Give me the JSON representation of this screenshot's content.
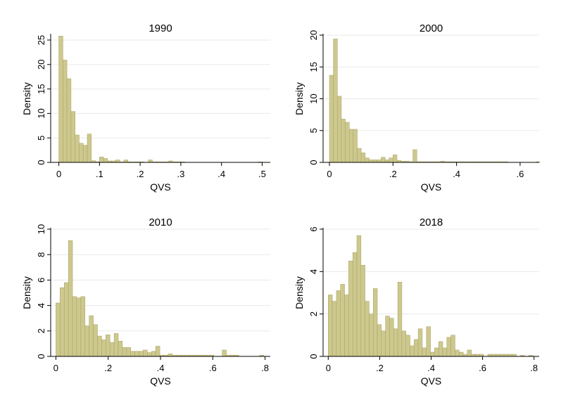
{
  "chart_data": [
    {
      "type": "bar",
      "title": "1990",
      "xlabel": "QVS",
      "ylabel": "Density",
      "xlim": [
        -0.02,
        0.52
      ],
      "ylim": [
        0,
        26
      ],
      "x_ticks": [
        0,
        0.1,
        0.2,
        0.3,
        0.4,
        0.5
      ],
      "x_tick_labels": [
        "0",
        ".1",
        ".2",
        ".3",
        ".4",
        ".5"
      ],
      "y_ticks": [
        0,
        5,
        10,
        15,
        20,
        25
      ],
      "y_tick_labels": [
        "0",
        "5",
        "10",
        "15",
        "20",
        "25"
      ],
      "grid": true,
      "bin_start": 0,
      "bin_width": 0.01,
      "values": [
        25.8,
        20.9,
        17.1,
        10.4,
        5.6,
        3.9,
        3.5,
        5.8,
        0.35,
        0.15,
        1.1,
        0.8,
        0.3,
        0.3,
        0.5,
        0.1,
        0.5,
        0.1,
        0.1,
        0.1,
        0.1,
        0,
        0.5,
        0.1,
        0.1,
        0.1,
        0.1,
        0.3,
        0.1,
        0.1,
        0.1,
        0,
        0,
        0,
        0,
        0,
        0,
        0,
        0,
        0,
        0,
        0,
        0,
        0,
        0,
        0,
        0,
        0,
        0,
        0.1
      ]
    },
    {
      "type": "bar",
      "title": "2000",
      "xlabel": "QVS",
      "ylabel": "Density",
      "xlim": [
        -0.02,
        0.66
      ],
      "ylim": [
        0,
        20
      ],
      "x_ticks": [
        0,
        0.2,
        0.4,
        0.6
      ],
      "x_tick_labels": [
        "0",
        ".2",
        ".4",
        ".6"
      ],
      "y_ticks": [
        0,
        5,
        10,
        15,
        20
      ],
      "y_tick_labels": [
        "0",
        "5",
        "10",
        "15",
        "20"
      ],
      "grid": true,
      "bin_start": 0,
      "bin_width": 0.0125,
      "values": [
        13.7,
        19.4,
        10.4,
        6.8,
        6.3,
        5.2,
        5.2,
        2.2,
        1.5,
        0.7,
        0.4,
        0.4,
        0.4,
        0.8,
        0.4,
        0.7,
        1.2,
        0.3,
        0.2,
        0.2,
        0.1,
        2.0,
        0.1,
        0.1,
        0.1,
        0.1,
        0.1,
        0.1,
        0.2,
        0.1,
        0.1,
        0.1,
        0.1,
        0.1,
        0.1,
        0.1,
        0.1,
        0.1,
        0.1,
        0.1,
        0.1,
        0.1,
        0.1,
        0.1,
        0.1,
        0,
        0,
        0,
        0,
        0,
        0,
        0,
        0.1
      ]
    },
    {
      "type": "bar",
      "title": "2010",
      "xlabel": "QVS",
      "ylabel": "Density",
      "xlim": [
        -0.02,
        0.82
      ],
      "ylim": [
        0,
        10
      ],
      "x_ticks": [
        0,
        0.2,
        0.4,
        0.6,
        0.8
      ],
      "x_tick_labels": [
        "0",
        ".2",
        ".4",
        ".6",
        ".8"
      ],
      "y_ticks": [
        0,
        2,
        4,
        6,
        8,
        10
      ],
      "y_tick_labels": [
        "0",
        "2",
        "4",
        "6",
        "8",
        "10"
      ],
      "grid": true,
      "bin_start": 0,
      "bin_width": 0.0159,
      "values": [
        4.2,
        5.4,
        5.8,
        9.1,
        4.7,
        4.6,
        4.7,
        2.4,
        3.2,
        2.5,
        1.6,
        1.3,
        1.7,
        1.1,
        1.8,
        1.2,
        0.7,
        0.7,
        0.4,
        0.4,
        0.4,
        0.5,
        0.3,
        0.4,
        0.8,
        0.1,
        0.1,
        0.2,
        0.1,
        0.1,
        0.1,
        0.1,
        0.1,
        0.1,
        0.1,
        0.1,
        0.1,
        0.1,
        0,
        0,
        0.5,
        0.1,
        0.1,
        0.1,
        0,
        0,
        0,
        0,
        0,
        0.1
      ]
    },
    {
      "type": "bar",
      "title": "2018",
      "xlabel": "QVS",
      "ylabel": "Density",
      "xlim": [
        -0.02,
        0.82
      ],
      "ylim": [
        0,
        6
      ],
      "x_ticks": [
        0,
        0.2,
        0.4,
        0.6,
        0.8
      ],
      "x_tick_labels": [
        "0",
        ".2",
        ".4",
        ".6",
        ".8"
      ],
      "y_ticks": [
        0,
        2,
        4,
        6
      ],
      "y_tick_labels": [
        "0",
        "2",
        "4",
        "6"
      ],
      "grid": true,
      "bin_start": 0,
      "bin_width": 0.0159,
      "values": [
        2.9,
        2.6,
        3.1,
        3.4,
        2.9,
        4.5,
        4.9,
        5.7,
        4.3,
        2.6,
        2.0,
        3.2,
        1.5,
        1.2,
        1.9,
        1.8,
        1.3,
        3.5,
        1.2,
        1.0,
        0.5,
        0.8,
        1.3,
        0.4,
        1.4,
        0.2,
        0.4,
        0.7,
        0.4,
        0.9,
        1.0,
        0.3,
        0.2,
        0.1,
        0.3,
        0.1,
        0.1,
        0.1,
        0,
        0.1,
        0.1,
        0.1,
        0.1,
        0.1,
        0.1,
        0.1,
        0,
        0.05,
        0,
        0.05
      ]
    }
  ],
  "style": {
    "bar_fill": "#cdc88e",
    "bar_stroke": "#a7a05f",
    "grid_color": "#eaeaea",
    "axis_color": "#000000",
    "background": "#ffffff"
  }
}
